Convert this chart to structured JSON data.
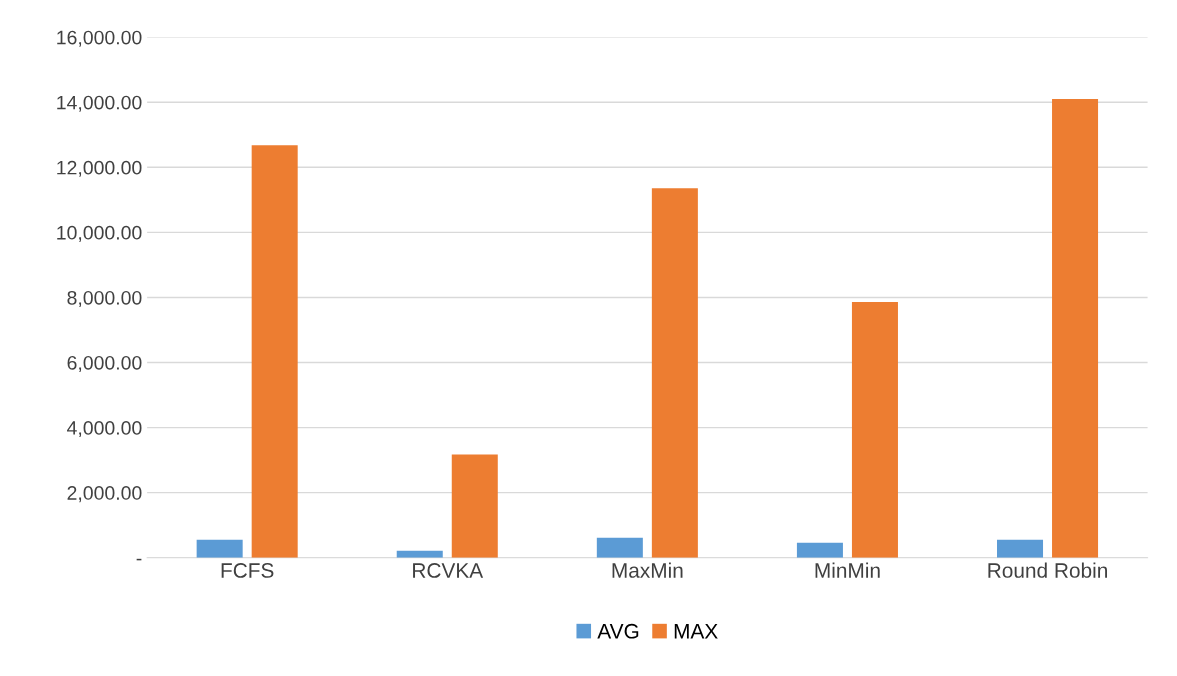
{
  "chart_data": {
    "type": "bar",
    "categories": [
      "FCFS",
      "RCVKA",
      "MaxMin",
      "MinMin",
      "Round Robin"
    ],
    "series": [
      {
        "name": "AVG",
        "color": "#5b9bd5",
        "values": [
          550,
          210,
          610,
          460,
          550
        ]
      },
      {
        "name": "MAX",
        "color": "#ed7d31",
        "values": [
          12680,
          3170,
          11360,
          7860,
          14100
        ]
      }
    ],
    "ylim": [
      0,
      16000
    ],
    "yticks": [
      {
        "value": 0,
        "label": "-"
      },
      {
        "value": 2000,
        "label": "2,000.00"
      },
      {
        "value": 4000,
        "label": "4,000.00"
      },
      {
        "value": 6000,
        "label": "6,000.00"
      },
      {
        "value": 8000,
        "label": "8,000.00"
      },
      {
        "value": 10000,
        "label": "10,000.00"
      },
      {
        "value": 12000,
        "label": "12,000.00"
      },
      {
        "value": 14000,
        "label": "14,000.00"
      },
      {
        "value": 16000,
        "label": "16,000.00"
      }
    ],
    "grid": "y",
    "legend": "bottom"
  }
}
